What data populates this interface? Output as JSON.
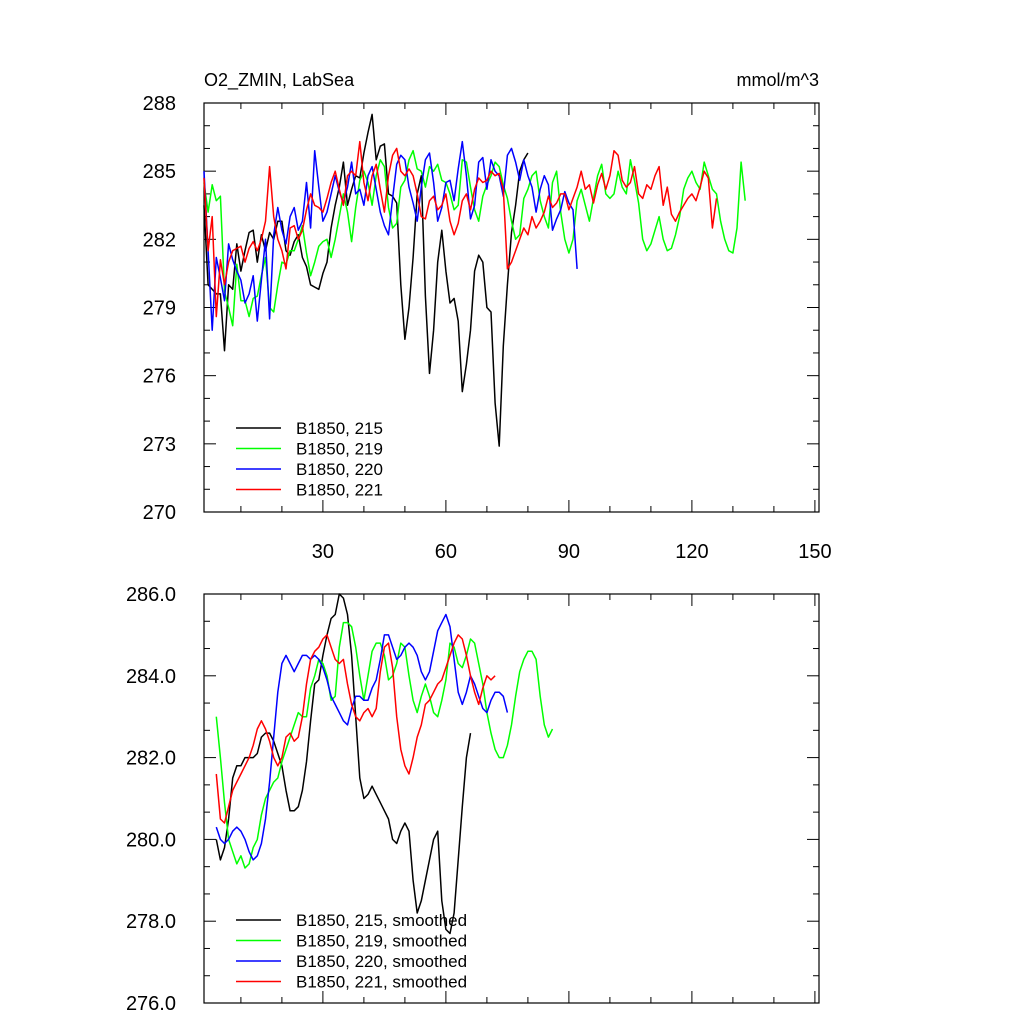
{
  "chart_data": [
    {
      "type": "line",
      "title": "O2_ZMIN, LabSea",
      "units": "mmol/m^3",
      "xlim": [
        1,
        151
      ],
      "ylim": [
        270,
        288
      ],
      "x_ticks": [
        30,
        60,
        90,
        120,
        150
      ],
      "x_tick_labels": [
        "30",
        "60",
        "90",
        "120",
        "150"
      ],
      "y_ticks": [
        270,
        273,
        276,
        279,
        282,
        285,
        288
      ],
      "y_tick_labels": [
        "270",
        "273",
        "276",
        "279",
        "282",
        "285",
        "288"
      ],
      "legend_position": "bottom-left",
      "series": [
        {
          "name": "B1850, 215",
          "color": "#000000",
          "start_x": 1,
          "values": [
            283.5,
            280.0,
            279.8,
            279.6,
            279.6,
            277.1,
            280.0,
            279.8,
            281.8,
            280.6,
            281.5,
            282.3,
            282.4,
            281.0,
            282.2,
            281.5,
            282.3,
            282.0,
            282.8,
            282.8,
            281.5,
            281.3,
            281.9,
            282.2,
            281.2,
            280.8,
            280.0,
            279.9,
            279.8,
            280.5,
            281.0,
            282.5,
            283.5,
            284.3,
            285.4,
            283.5,
            284.2,
            284.8,
            284.7,
            285.8,
            286.7,
            287.5,
            285.5,
            286.1,
            286.2,
            284.0,
            283.9,
            283.6,
            280.0,
            277.6,
            279.0,
            281.2,
            284.0,
            284.8,
            279.5,
            276.1,
            278.0,
            281.0,
            282.4,
            280.6,
            279.2,
            279.4,
            278.4,
            275.3,
            276.5,
            278.0,
            280.6,
            281.3,
            281.0,
            279.0,
            278.8,
            274.8,
            272.9,
            277.3,
            280.0,
            282.3,
            283.5,
            285.0,
            285.5,
            285.8
          ]
        },
        {
          "name": "B1850, 219",
          "color": "#00ff00",
          "start_x": 1,
          "values": [
            284.5,
            283.2,
            284.4,
            283.7,
            283.9,
            279.7,
            279.0,
            278.2,
            280.9,
            279.3,
            279.3,
            278.6,
            279.4,
            279.5,
            280.4,
            281.2,
            279.0,
            278.8,
            280.0,
            281.0,
            280.9,
            281.5,
            281.5,
            282.0,
            282.6,
            281.4,
            280.4,
            281.0,
            281.7,
            281.9,
            282.0,
            281.2,
            282.0,
            283.0,
            284.0,
            283.2,
            281.9,
            283.4,
            284.6,
            285.0,
            284.5,
            283.5,
            284.8,
            285.5,
            285.2,
            283.4,
            282.5,
            282.7,
            284.3,
            284.6,
            285.5,
            285.9,
            285.1,
            285.0,
            284.3,
            285.2,
            285.0,
            285.3,
            284.6,
            284.5,
            284.0,
            283.3,
            283.5,
            285.5,
            285.4,
            284.3,
            283.3,
            282.8,
            283.9,
            284.4,
            284.8,
            285.4,
            285.2,
            284.4,
            283.8,
            282.8,
            282.0,
            282.2,
            283.8,
            284.2,
            284.8,
            285.0,
            283.7,
            283.0,
            282.5,
            284.5,
            285.0,
            283.2,
            282.0,
            281.4,
            282.0,
            283.7,
            284.2,
            283.5,
            282.8,
            283.8,
            284.8,
            285.3,
            284.0,
            283.8,
            284.0,
            285.0,
            284.3,
            284.0,
            285.5,
            284.6,
            283.6,
            282.0,
            281.5,
            281.8,
            282.4,
            283.0,
            282.0,
            281.5,
            281.6,
            282.2,
            283.0,
            284.2,
            284.7,
            285.0,
            284.5,
            284.2,
            285.4,
            284.8,
            284.2,
            284.0,
            282.8,
            282.0,
            281.5,
            281.4,
            282.5,
            285.4,
            283.7
          ]
        },
        {
          "name": "B1850, 220",
          "color": "#0000ff",
          "start_x": 1,
          "values": [
            285.0,
            281.5,
            278.0,
            281.2,
            280.3,
            279.3,
            281.8,
            281.1,
            280.6,
            280.2,
            279.2,
            279.6,
            280.4,
            278.4,
            280.2,
            282.0,
            278.5,
            282.2,
            283.4,
            282.4,
            281.8,
            283.0,
            283.4,
            282.4,
            282.8,
            284.5,
            282.5,
            285.9,
            284.3,
            282.8,
            283.2,
            284.0,
            284.8,
            284.1,
            283.6,
            284.3,
            285.4,
            284.0,
            284.2,
            283.5,
            284.8,
            285.2,
            284.2,
            283.2,
            282.6,
            282.2,
            283.8,
            285.3,
            285.7,
            285.5,
            284.3,
            283.6,
            282.8,
            284.3,
            285.5,
            285.8,
            284.5,
            282.8,
            283.4,
            284.5,
            284.6,
            283.7,
            285.1,
            286.3,
            284.8,
            282.9,
            283.5,
            285.4,
            285.6,
            284.2,
            285.5,
            285.0,
            284.8,
            283.9,
            285.7,
            286.0,
            285.4,
            284.6,
            285.5,
            284.8,
            284.3,
            283.2,
            284.2,
            284.8,
            284.4,
            282.4,
            282.9,
            283.3,
            284.1,
            283.6,
            283.3,
            280.7
          ]
        },
        {
          "name": "B1850, 221",
          "color": "#ff0000",
          "start_x": 1,
          "values": [
            284.7,
            281.5,
            283.0,
            278.6,
            281.1,
            280.0,
            281.0,
            281.5,
            281.6,
            281.7,
            281.0,
            281.6,
            281.9,
            281.5,
            282.0,
            282.8,
            285.2,
            283.0,
            282.0,
            281.5,
            280.7,
            282.5,
            282.6,
            282.0,
            282.4,
            283.3,
            284.0,
            283.5,
            283.4,
            283.2,
            283.8,
            284.5,
            285.0,
            284.2,
            283.5,
            284.8,
            285.0,
            284.8,
            286.3,
            284.5,
            283.7,
            284.8,
            285.3,
            284.2,
            283.2,
            284.8,
            285.7,
            286.0,
            285.0,
            284.8,
            285.1,
            284.8,
            284.0,
            283.0,
            282.9,
            283.7,
            283.9,
            283.3,
            283.5,
            284.0,
            282.8,
            282.2,
            282.7,
            283.7,
            284.0,
            283.3,
            284.2,
            284.7,
            284.5,
            284.6,
            285.0,
            284.8,
            284.9,
            284.2,
            280.7,
            281.0,
            281.5,
            282.0,
            282.5,
            282.2,
            283.0,
            282.5,
            282.8,
            283.2,
            283.9,
            283.4,
            283.6,
            284.0,
            284.0,
            283.3,
            283.8,
            284.3,
            285.0,
            284.2,
            284.4,
            283.6,
            284.4,
            284.9,
            284.2,
            284.8,
            285.9,
            285.7,
            284.6,
            284.3,
            284.5,
            285.2,
            284.0,
            283.8,
            284.4,
            284.2,
            284.8,
            285.2,
            283.5,
            284.3,
            283.1,
            282.8,
            283.2,
            283.5,
            283.8,
            284.0,
            283.7,
            284.3,
            285.0,
            284.7,
            282.5,
            283.8
          ]
        }
      ]
    },
    {
      "type": "line",
      "title": "",
      "xlim": [
        1,
        151
      ],
      "ylim": [
        276,
        286
      ],
      "x_ticks": [
        30,
        60,
        90,
        120,
        150
      ],
      "y_ticks": [
        276,
        278,
        280,
        282,
        284,
        286
      ],
      "y_tick_labels": [
        "276.0",
        "278.0",
        "280.0",
        "282.0",
        "284.0",
        "286.0"
      ],
      "legend_position": "bottom-left",
      "series": [
        {
          "name": "B1850, 215, smoothed",
          "color": "#000000",
          "start_x": 4,
          "values": [
            280.0,
            279.5,
            279.8,
            280.5,
            281.5,
            281.8,
            281.8,
            282.0,
            282.0,
            282.0,
            282.1,
            282.5,
            282.6,
            282.6,
            282.4,
            282.1,
            281.8,
            281.2,
            280.7,
            280.7,
            280.8,
            281.2,
            281.9,
            282.9,
            283.8,
            283.9,
            284.5,
            285.0,
            285.4,
            285.5,
            286.0,
            285.9,
            285.5,
            284.5,
            283.0,
            281.5,
            281.0,
            281.1,
            281.3,
            281.1,
            280.9,
            280.7,
            280.5,
            280.0,
            279.9,
            280.2,
            280.4,
            280.2,
            279.0,
            278.2,
            278.5,
            279.0,
            279.5,
            280.0,
            280.2,
            278.5,
            277.8,
            277.7,
            278.2,
            279.5,
            280.8,
            282.0,
            282.6
          ]
        },
        {
          "name": "B1850, 219, smoothed",
          "color": "#00ff00",
          "start_x": 4,
          "values": [
            283.0,
            282.0,
            280.9,
            280.0,
            279.7,
            279.4,
            279.6,
            279.3,
            279.4,
            279.8,
            280.0,
            280.6,
            281.0,
            281.2,
            281.4,
            281.5,
            281.9,
            282.2,
            282.5,
            282.8,
            283.1,
            283.0,
            283.0,
            283.7,
            284.0,
            284.4,
            284.3,
            284.0,
            283.4,
            283.5,
            284.7,
            285.3,
            285.3,
            285.2,
            284.7,
            284.0,
            283.4,
            284.0,
            284.6,
            284.8,
            284.8,
            284.5,
            283.9,
            284.0,
            284.3,
            284.8,
            284.7,
            284.0,
            283.4,
            283.1,
            283.5,
            283.8,
            283.5,
            283.1,
            283.0,
            283.4,
            283.9,
            284.8,
            284.7,
            284.3,
            284.2,
            284.5,
            284.9,
            284.8,
            284.3,
            283.8,
            283.1,
            282.6,
            282.2,
            282.0,
            282.0,
            282.3,
            282.8,
            283.5,
            284.1,
            284.4,
            284.6,
            284.6,
            284.4,
            283.5,
            282.8,
            282.5,
            282.7
          ]
        },
        {
          "name": "B1850, 220, smoothed",
          "color": "#0000ff",
          "start_x": 4,
          "values": [
            280.3,
            280.0,
            279.9,
            280.0,
            280.2,
            280.3,
            280.2,
            280.0,
            279.7,
            279.5,
            279.6,
            279.9,
            280.5,
            281.4,
            282.5,
            283.6,
            284.3,
            284.5,
            284.3,
            284.1,
            284.3,
            284.5,
            284.5,
            284.4,
            284.5,
            284.4,
            284.2,
            283.9,
            283.5,
            283.3,
            283.1,
            282.9,
            282.8,
            283.2,
            283.5,
            283.5,
            283.4,
            283.4,
            283.7,
            283.9,
            284.4,
            285.0,
            285.0,
            284.7,
            284.4,
            284.5,
            284.7,
            284.8,
            284.7,
            284.5,
            284.1,
            283.9,
            284.1,
            284.6,
            285.1,
            285.3,
            285.5,
            285.2,
            284.4,
            283.6,
            283.3,
            283.6,
            284.0,
            283.8,
            283.5,
            283.2,
            283.1,
            283.4,
            283.6,
            283.6,
            283.5,
            283.1
          ]
        },
        {
          "name": "B1850, 221, smoothed",
          "color": "#ff0000",
          "start_x": 4,
          "values": [
            281.6,
            280.5,
            280.4,
            280.8,
            281.2,
            281.4,
            281.6,
            281.8,
            282.0,
            282.3,
            282.7,
            282.9,
            282.7,
            282.4,
            282.0,
            281.8,
            282.0,
            282.5,
            282.6,
            282.4,
            282.5,
            283.0,
            283.8,
            284.4,
            284.6,
            284.7,
            284.9,
            285.0,
            284.7,
            284.4,
            284.3,
            284.4,
            283.8,
            283.3,
            283.0,
            282.9,
            283.1,
            283.2,
            283.0,
            283.2,
            284.1,
            284.7,
            284.8,
            284.2,
            283.0,
            282.2,
            281.8,
            281.6,
            282.0,
            282.5,
            282.8,
            283.3,
            283.4,
            283.6,
            283.8,
            283.9,
            284.2,
            284.5,
            284.8,
            285.0,
            284.9,
            284.5,
            284.0,
            283.6,
            283.3,
            283.7,
            284.0,
            283.9,
            284.0
          ]
        }
      ]
    }
  ]
}
